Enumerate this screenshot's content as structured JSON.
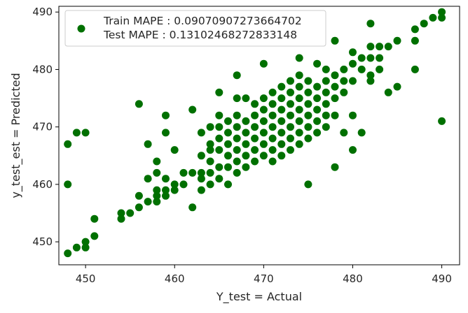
{
  "chart_data": {
    "type": "scatter",
    "xlabel": "Y_test = Actual",
    "ylabel": "y_test_est = Predicted",
    "xlim": [
      447,
      492
    ],
    "ylim": [
      446,
      491
    ],
    "xticks": [
      450,
      460,
      470,
      480,
      490
    ],
    "yticks": [
      450,
      460,
      470,
      480,
      490
    ],
    "grid": false,
    "legend_position": "top-left",
    "series_color": "#007000",
    "legend": [
      "Train MAPE : 0.09070907273664702",
      "Test MAPE : 0.13102468272833148"
    ],
    "points": [
      [
        448,
        467
      ],
      [
        448,
        460
      ],
      [
        448,
        448
      ],
      [
        449,
        469
      ],
      [
        449,
        449
      ],
      [
        450,
        469
      ],
      [
        450,
        450
      ],
      [
        450,
        449
      ],
      [
        451,
        454
      ],
      [
        451,
        451
      ],
      [
        454,
        455
      ],
      [
        454,
        454
      ],
      [
        455,
        455
      ],
      [
        456,
        474
      ],
      [
        456,
        458
      ],
      [
        456,
        456
      ],
      [
        457,
        467
      ],
      [
        457,
        461
      ],
      [
        457,
        457
      ],
      [
        458,
        464
      ],
      [
        458,
        462
      ],
      [
        458,
        459
      ],
      [
        458,
        458
      ],
      [
        458,
        457
      ],
      [
        459,
        472
      ],
      [
        459,
        469
      ],
      [
        459,
        461
      ],
      [
        459,
        459
      ],
      [
        459,
        458
      ],
      [
        460,
        466
      ],
      [
        460,
        460
      ],
      [
        460,
        459
      ],
      [
        461,
        462
      ],
      [
        461,
        460
      ],
      [
        462,
        473
      ],
      [
        462,
        462
      ],
      [
        462,
        456
      ],
      [
        463,
        469
      ],
      [
        463,
        465
      ],
      [
        463,
        462
      ],
      [
        463,
        461
      ],
      [
        463,
        459
      ],
      [
        464,
        470
      ],
      [
        464,
        467
      ],
      [
        464,
        466
      ],
      [
        464,
        464
      ],
      [
        464,
        462
      ],
      [
        464,
        460
      ],
      [
        465,
        476
      ],
      [
        465,
        472
      ],
      [
        465,
        470
      ],
      [
        465,
        468
      ],
      [
        465,
        466
      ],
      [
        465,
        463
      ],
      [
        465,
        461
      ],
      [
        466,
        471
      ],
      [
        466,
        469
      ],
      [
        466,
        467
      ],
      [
        466,
        465
      ],
      [
        466,
        463
      ],
      [
        466,
        460
      ],
      [
        467,
        479
      ],
      [
        467,
        475
      ],
      [
        467,
        472
      ],
      [
        467,
        470
      ],
      [
        467,
        468
      ],
      [
        467,
        466
      ],
      [
        467,
        464
      ],
      [
        467,
        462
      ],
      [
        468,
        475
      ],
      [
        468,
        471
      ],
      [
        468,
        469
      ],
      [
        468,
        467
      ],
      [
        468,
        465
      ],
      [
        468,
        463
      ],
      [
        469,
        474
      ],
      [
        469,
        472
      ],
      [
        469,
        470
      ],
      [
        469,
        468
      ],
      [
        469,
        466
      ],
      [
        469,
        464
      ],
      [
        470,
        481
      ],
      [
        470,
        475
      ],
      [
        470,
        473
      ],
      [
        470,
        471
      ],
      [
        470,
        469
      ],
      [
        470,
        467
      ],
      [
        470,
        465
      ],
      [
        471,
        476
      ],
      [
        471,
        474
      ],
      [
        471,
        472
      ],
      [
        471,
        470
      ],
      [
        471,
        468
      ],
      [
        471,
        466
      ],
      [
        471,
        464
      ],
      [
        472,
        477
      ],
      [
        472,
        475
      ],
      [
        472,
        473
      ],
      [
        472,
        471
      ],
      [
        472,
        469
      ],
      [
        472,
        467
      ],
      [
        472,
        465
      ],
      [
        473,
        478
      ],
      [
        473,
        476
      ],
      [
        473,
        474
      ],
      [
        473,
        472
      ],
      [
        473,
        470
      ],
      [
        473,
        468
      ],
      [
        473,
        466
      ],
      [
        474,
        482
      ],
      [
        474,
        479
      ],
      [
        474,
        477
      ],
      [
        474,
        475
      ],
      [
        474,
        473
      ],
      [
        474,
        471
      ],
      [
        474,
        469
      ],
      [
        474,
        467
      ],
      [
        475,
        478
      ],
      [
        475,
        476
      ],
      [
        475,
        474
      ],
      [
        475,
        472
      ],
      [
        475,
        470
      ],
      [
        475,
        468
      ],
      [
        475,
        460
      ],
      [
        476,
        481
      ],
      [
        476,
        477
      ],
      [
        476,
        475
      ],
      [
        476,
        473
      ],
      [
        476,
        471
      ],
      [
        476,
        469
      ],
      [
        477,
        480
      ],
      [
        477,
        478
      ],
      [
        477,
        476
      ],
      [
        477,
        474
      ],
      [
        477,
        472
      ],
      [
        477,
        470
      ],
      [
        478,
        485
      ],
      [
        478,
        479
      ],
      [
        478,
        477
      ],
      [
        478,
        475
      ],
      [
        478,
        472
      ],
      [
        478,
        463
      ],
      [
        479,
        480
      ],
      [
        479,
        478
      ],
      [
        479,
        476
      ],
      [
        479,
        469
      ],
      [
        480,
        483
      ],
      [
        480,
        481
      ],
      [
        480,
        478
      ],
      [
        480,
        472
      ],
      [
        480,
        466
      ],
      [
        481,
        482
      ],
      [
        481,
        480
      ],
      [
        481,
        469
      ],
      [
        482,
        488
      ],
      [
        482,
        484
      ],
      [
        482,
        482
      ],
      [
        482,
        479
      ],
      [
        482,
        478
      ],
      [
        483,
        484
      ],
      [
        483,
        482
      ],
      [
        483,
        480
      ],
      [
        484,
        484
      ],
      [
        484,
        476
      ],
      [
        485,
        485
      ],
      [
        485,
        477
      ],
      [
        487,
        487
      ],
      [
        487,
        485
      ],
      [
        487,
        480
      ],
      [
        488,
        488
      ],
      [
        489,
        489
      ],
      [
        490,
        490
      ],
      [
        490,
        489
      ],
      [
        490,
        471
      ]
    ]
  }
}
